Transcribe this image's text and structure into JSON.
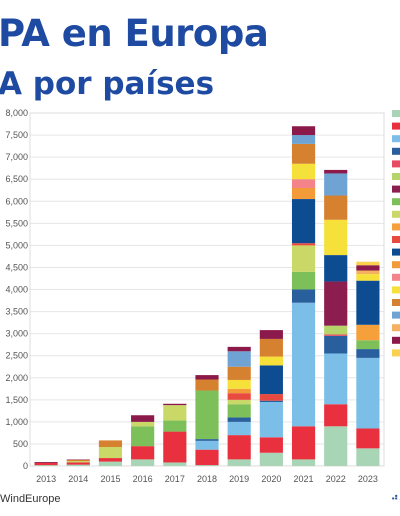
{
  "header": {
    "title": "PA en Europa",
    "subtitle": "A por países"
  },
  "footer": {
    "source": "WindEurope",
    "logo_text": "AE"
  },
  "chart_data": {
    "type": "bar",
    "stacked": true,
    "categories": [
      "2013",
      "2014",
      "2015",
      "2016",
      "2017",
      "2018",
      "2019",
      "2020",
      "2021",
      "2022",
      "2023"
    ],
    "ylim": [
      0,
      8000
    ],
    "yticks": [
      0,
      500,
      1000,
      1500,
      2000,
      2500,
      3000,
      3500,
      4000,
      4500,
      5000,
      5500,
      6000,
      6500,
      7000,
      7500,
      8000
    ],
    "ytick_labels": [
      "0",
      "500",
      "1,000",
      "1,500",
      "2,000",
      "2,500",
      "3,000",
      "3,500",
      "4,000",
      "4,500",
      "5,000",
      "5,500",
      "6,000",
      "6,500",
      "7,000",
      "7,500",
      "8,000"
    ],
    "grid": true,
    "legend_position": "right",
    "series": [
      {
        "color": "#a8d5b5",
        "values": [
          20,
          30,
          100,
          150,
          80,
          20,
          150,
          300,
          150,
          900,
          400
        ]
      },
      {
        "color": "#e8303f",
        "values": [
          50,
          50,
          80,
          300,
          700,
          350,
          550,
          350,
          750,
          500,
          450
        ]
      },
      {
        "color": "#7bbfe8",
        "values": [
          0,
          0,
          0,
          0,
          0,
          200,
          300,
          800,
          2800,
          1150,
          1600
        ]
      },
      {
        "color": "#2a5f9e",
        "values": [
          0,
          0,
          0,
          0,
          0,
          40,
          100,
          30,
          300,
          400,
          200
        ]
      },
      {
        "color": "#e84a62",
        "values": [
          0,
          0,
          0,
          0,
          0,
          0,
          0,
          0,
          0,
          30,
          0
        ]
      },
      {
        "color": "#b5d56a",
        "values": [
          0,
          0,
          0,
          0,
          0,
          0,
          0,
          0,
          0,
          200,
          0
        ]
      },
      {
        "color": "#8b1e4e",
        "values": [
          0,
          0,
          0,
          0,
          0,
          0,
          0,
          0,
          0,
          1000,
          0
        ]
      },
      {
        "color": "#7dc05a",
        "values": [
          0,
          0,
          0,
          450,
          250,
          1100,
          300,
          0,
          400,
          0,
          200
        ]
      },
      {
        "color": "#c9d867",
        "values": [
          0,
          30,
          250,
          100,
          350,
          0,
          100,
          0,
          600,
          0,
          0
        ]
      },
      {
        "color": "#f6a03c",
        "values": [
          0,
          0,
          0,
          0,
          0,
          0,
          0,
          0,
          0,
          0,
          350
        ]
      },
      {
        "color": "#e84a40",
        "values": [
          0,
          0,
          0,
          0,
          0,
          0,
          150,
          150,
          50,
          0,
          0
        ]
      },
      {
        "color": "#0e4c92",
        "values": [
          0,
          0,
          0,
          0,
          0,
          0,
          0,
          650,
          1000,
          600,
          1000
        ]
      },
      {
        "color": "#f29b38",
        "values": [
          0,
          0,
          0,
          0,
          0,
          0,
          100,
          0,
          250,
          0,
          0
        ]
      },
      {
        "color": "#f4838a",
        "values": [
          0,
          0,
          0,
          0,
          0,
          0,
          0,
          0,
          200,
          0,
          0
        ]
      },
      {
        "color": "#f5e13a",
        "values": [
          0,
          0,
          0,
          0,
          0,
          0,
          200,
          200,
          350,
          800,
          150
        ]
      },
      {
        "color": "#d6812f",
        "values": [
          0,
          30,
          150,
          0,
          0,
          250,
          300,
          400,
          450,
          550,
          0
        ]
      },
      {
        "color": "#6ea3d4",
        "values": [
          0,
          0,
          0,
          0,
          0,
          0,
          350,
          0,
          200,
          500,
          0
        ]
      },
      {
        "color": "#f5b062",
        "values": [
          0,
          0,
          0,
          0,
          0,
          0,
          0,
          0,
          0,
          0,
          80
        ]
      },
      {
        "color": "#8b1a4a",
        "values": [
          20,
          10,
          0,
          150,
          30,
          100,
          100,
          200,
          200,
          80,
          120
        ]
      },
      {
        "color": "#fad04f",
        "values": [
          0,
          0,
          0,
          0,
          0,
          0,
          0,
          0,
          0,
          0,
          80
        ]
      }
    ]
  }
}
